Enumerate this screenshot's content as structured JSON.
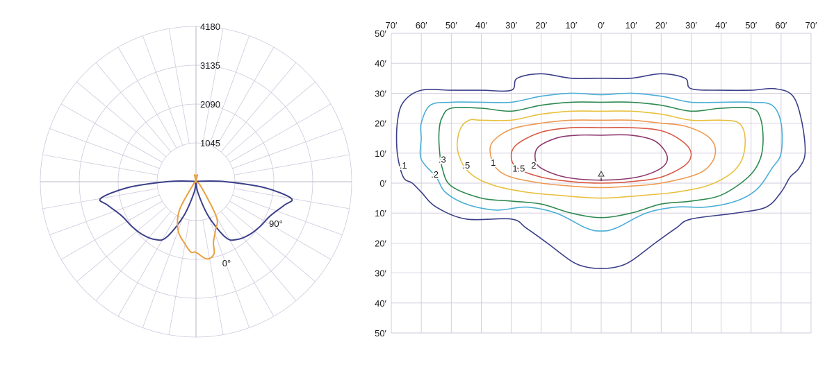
{
  "chart_data": [
    {
      "type": "polar",
      "radial_ticks": [
        "1045",
        "2090",
        "3135",
        "4180"
      ],
      "radial_values": [
        1045,
        2090,
        3135,
        4180
      ],
      "rmax": 4180,
      "angle_labels": [
        "0°",
        "90°"
      ],
      "series": [
        {
          "color": "#3b3f8a",
          "points": [
            [
              0,
              0
            ],
            [
              10,
              300
            ],
            [
              20,
              1000
            ],
            [
              28,
              1700
            ],
            [
              35,
              1900
            ],
            [
              45,
              2020
            ],
            [
              55,
              2100
            ],
            [
              65,
              2190
            ],
            [
              75,
              2450
            ],
            [
              80,
              2600
            ],
            [
              85,
              1850
            ],
            [
              90,
              800
            ],
            [
              96,
              150
            ],
            [
              100,
              0
            ],
            [
              -100,
              0
            ],
            [
              -96,
              150
            ],
            [
              -90,
              800
            ],
            [
              -85,
              1850
            ],
            [
              -80,
              2600
            ],
            [
              -75,
              2450
            ],
            [
              -65,
              2190
            ],
            [
              -55,
              2100
            ],
            [
              -45,
              2020
            ],
            [
              -35,
              1900
            ],
            [
              -28,
              1700
            ],
            [
              -20,
              1000
            ],
            [
              -10,
              300
            ]
          ]
        },
        {
          "color": "#e8a040",
          "points": [
            [
              0,
              1900
            ],
            [
              8,
              2100
            ],
            [
              14,
              2000
            ],
            [
              16,
              1700
            ],
            [
              22,
              1400
            ],
            [
              30,
              1100
            ],
            [
              45,
              200
            ],
            [
              60,
              0
            ],
            [
              90,
              0
            ],
            [
              150,
              0
            ],
            [
              168,
              180
            ],
            [
              170,
              170
            ],
            [
              176,
              160
            ],
            [
              -176,
              160
            ],
            [
              -170,
              170
            ],
            [
              -168,
              180
            ],
            [
              -150,
              0
            ],
            [
              -90,
              0
            ],
            [
              -45,
              100
            ],
            [
              -30,
              900
            ],
            [
              -20,
              1400
            ],
            [
              -10,
              1700
            ],
            [
              -4,
              1900
            ]
          ]
        }
      ]
    },
    {
      "type": "contour",
      "x_ticks": [
        "70′",
        "60′",
        "50′",
        "40′",
        "30′",
        "20′",
        "10′",
        "0′",
        "10′",
        "20′",
        "30′",
        "40′",
        "50′",
        "60′",
        "70′"
      ],
      "x_values": [
        -70,
        -60,
        -50,
        -40,
        -30,
        -20,
        -10,
        0,
        10,
        20,
        30,
        40,
        50,
        60,
        70
      ],
      "y_ticks": [
        "50′",
        "40′",
        "30′",
        "20′",
        "10′",
        "0′",
        "10′",
        "20′",
        "30′",
        "40′",
        "50′"
      ],
      "y_values": [
        50,
        40,
        30,
        20,
        10,
        0,
        -10,
        -20,
        -30,
        -40,
        -50
      ],
      "xlim": [
        -70,
        70
      ],
      "ylim": [
        -50,
        50
      ],
      "levels": [
        {
          "label": ".1",
          "color": "#3b3f8a",
          "label_at": [
            -66,
            6
          ],
          "points": [
            [
              0,
              35
            ],
            [
              10,
              35
            ],
            [
              20,
              36.5
            ],
            [
              28,
              35
            ],
            [
              30,
              31.5
            ],
            [
              40,
              31
            ],
            [
              50,
              31
            ],
            [
              58,
              31.5
            ],
            [
              64,
              29
            ],
            [
              67,
              20
            ],
            [
              68,
              10
            ],
            [
              66,
              5
            ],
            [
              63,
              2
            ],
            [
              60,
              -3
            ],
            [
              55,
              -8
            ],
            [
              45,
              -10
            ],
            [
              30,
              -12
            ],
            [
              25,
              -15
            ],
            [
              18,
              -20
            ],
            [
              10,
              -26
            ],
            [
              5,
              -28
            ],
            [
              0,
              -28.5
            ],
            [
              -5,
              -28
            ],
            [
              -10,
              -26
            ],
            [
              -18,
              -20
            ],
            [
              -25,
              -15
            ],
            [
              -30,
              -12
            ],
            [
              -45,
              -12
            ],
            [
              -55,
              -8
            ],
            [
              -60,
              -3
            ],
            [
              -63,
              0
            ],
            [
              -66,
              2
            ],
            [
              -68,
              10
            ],
            [
              -68,
              20
            ],
            [
              -66,
              27
            ],
            [
              -60,
              31
            ],
            [
              -50,
              31
            ],
            [
              -40,
              31
            ],
            [
              -30,
              31
            ],
            [
              -28,
              35
            ],
            [
              -20,
              36.5
            ],
            [
              -10,
              35
            ]
          ]
        },
        {
          "label": ".2",
          "color": "#4aaed6",
          "label_at": [
            -55.5,
            3
          ],
          "points": [
            [
              0,
              29.5
            ],
            [
              10,
              30
            ],
            [
              20,
              29
            ],
            [
              30,
              27
            ],
            [
              40,
              27
            ],
            [
              50,
              27
            ],
            [
              57,
              26
            ],
            [
              60,
              20
            ],
            [
              60,
              10
            ],
            [
              57,
              5
            ],
            [
              52,
              -2
            ],
            [
              45,
              -6
            ],
            [
              35,
              -8
            ],
            [
              25,
              -8
            ],
            [
              15,
              -10
            ],
            [
              5,
              -15
            ],
            [
              0,
              -16
            ],
            [
              -5,
              -15
            ],
            [
              -15,
              -10
            ],
            [
              -25,
              -8
            ],
            [
              -35,
              -9
            ],
            [
              -45,
              -7
            ],
            [
              -52,
              -3
            ],
            [
              -55,
              2
            ],
            [
              -60,
              8
            ],
            [
              -60,
              15
            ],
            [
              -60,
              20
            ],
            [
              -57,
              26
            ],
            [
              -50,
              27
            ],
            [
              -40,
              27
            ],
            [
              -30,
              27
            ],
            [
              -20,
              29
            ],
            [
              -10,
              30
            ]
          ]
        },
        {
          "label": ".3",
          "color": "#2e8a50",
          "label_at": [
            -53,
            8
          ],
          "points": [
            [
              0,
              27
            ],
            [
              10,
              27
            ],
            [
              20,
              26
            ],
            [
              30,
              24
            ],
            [
              40,
              25
            ],
            [
              50,
              25
            ],
            [
              53,
              22
            ],
            [
              54,
              15
            ],
            [
              53,
              8
            ],
            [
              49,
              2
            ],
            [
              40,
              -4
            ],
            [
              30,
              -6
            ],
            [
              20,
              -7
            ],
            [
              10,
              -10
            ],
            [
              0,
              -11.5
            ],
            [
              -10,
              -10
            ],
            [
              -20,
              -7
            ],
            [
              -30,
              -6
            ],
            [
              -40,
              -5
            ],
            [
              -50,
              -1
            ],
            [
              -53,
              5
            ],
            [
              -54,
              12
            ],
            [
              -54,
              18
            ],
            [
              -53,
              22
            ],
            [
              -50,
              25
            ],
            [
              -40,
              25
            ],
            [
              -30,
              24
            ],
            [
              -20,
              26
            ],
            [
              -10,
              27
            ]
          ]
        },
        {
          "label": ".5",
          "color": "#e8c040",
          "label_at": [
            -45,
            6
          ],
          "points": [
            [
              0,
              24
            ],
            [
              10,
              24
            ],
            [
              20,
              23
            ],
            [
              30,
              21
            ],
            [
              40,
              21
            ],
            [
              46,
              20
            ],
            [
              48,
              15
            ],
            [
              47,
              8
            ],
            [
              43,
              3
            ],
            [
              35,
              -1
            ],
            [
              25,
              -3
            ],
            [
              15,
              -4
            ],
            [
              0,
              -5
            ],
            [
              -15,
              -4
            ],
            [
              -25,
              -3
            ],
            [
              -35,
              -1
            ],
            [
              -42,
              2
            ],
            [
              -46,
              6
            ],
            [
              -48,
              12
            ],
            [
              -47,
              18
            ],
            [
              -44,
              21
            ],
            [
              -40,
              21
            ],
            [
              -30,
              21
            ],
            [
              -20,
              23
            ],
            [
              -10,
              24
            ]
          ]
        },
        {
          "label": "1",
          "color": "#ee9a50",
          "label_at": [
            -36,
            7
          ],
          "points": [
            [
              0,
              21
            ],
            [
              10,
              21
            ],
            [
              20,
              20
            ],
            [
              28,
              19
            ],
            [
              35,
              16
            ],
            [
              38,
              12
            ],
            [
              37,
              7
            ],
            [
              32,
              3
            ],
            [
              20,
              0
            ],
            [
              10,
              -1
            ],
            [
              0,
              -1.5
            ],
            [
              -10,
              -1
            ],
            [
              -20,
              0
            ],
            [
              -30,
              2
            ],
            [
              -35,
              5
            ],
            [
              -37,
              10
            ],
            [
              -36,
              14
            ],
            [
              -30,
              18
            ],
            [
              -20,
              20
            ],
            [
              -10,
              21
            ]
          ]
        },
        {
          "label": "1.5",
          "color": "#d85a45",
          "label_at": [
            -27.5,
            5
          ],
          "points": [
            [
              0,
              18.5
            ],
            [
              10,
              18.5
            ],
            [
              20,
              17.5
            ],
            [
              27,
              14
            ],
            [
              30,
              10
            ],
            [
              28,
              6
            ],
            [
              20,
              2
            ],
            [
              10,
              0.5
            ],
            [
              0,
              0
            ],
            [
              -10,
              0.5
            ],
            [
              -20,
              2
            ],
            [
              -28,
              5
            ],
            [
              -30,
              9
            ],
            [
              -28,
              13
            ],
            [
              -20,
              17
            ],
            [
              -10,
              18.5
            ]
          ]
        },
        {
          "label": "2",
          "color": "#8e3a6e",
          "label_at": [
            -22.5,
            6
          ],
          "points": [
            [
              0,
              16
            ],
            [
              10,
              16
            ],
            [
              18,
              14
            ],
            [
              22,
              9
            ],
            [
              20,
              5
            ],
            [
              12,
              2
            ],
            [
              0,
              1
            ],
            [
              -12,
              2
            ],
            [
              -20,
              5
            ],
            [
              -22,
              8
            ],
            [
              -21,
              12
            ],
            [
              -15,
              15
            ],
            [
              -8,
              16
            ]
          ]
        }
      ]
    }
  ]
}
